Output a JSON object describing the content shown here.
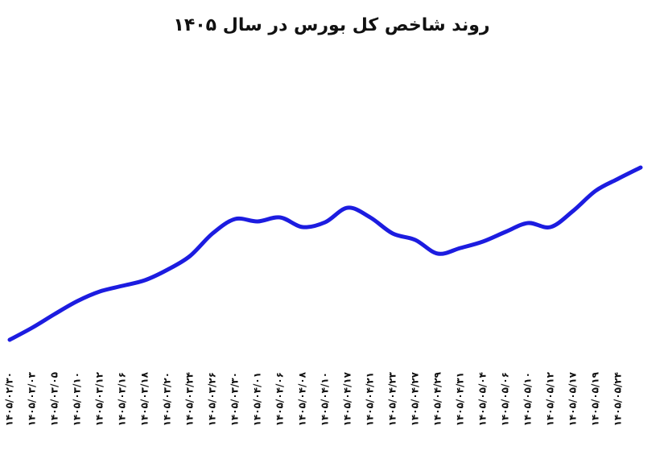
{
  "chart_data": {
    "type": "line",
    "title": "روند شاخص کل بورس در سال ۱۴۰۵",
    "categories": [
      "۱۴۰۵/۰۲/۳۰",
      "۱۴۰۵/۰۳/۰۳",
      "۱۴۰۵/۰۳/۰۵",
      "۱۴۰۵/۰۳/۱۰",
      "۱۴۰۵/۰۳/۱۲",
      "۱۴۰۵/۰۳/۱۶",
      "۱۴۰۵/۰۳/۱۸",
      "۱۴۰۵/۰۳/۲۰",
      "۱۴۰۵/۰۳/۲۴",
      "۱۴۰۵/۰۳/۲۶",
      "۱۴۰۵/۰۳/۳۰",
      "۱۴۰۵/۰۴/۰۱",
      "۱۴۰۵/۰۴/۰۶",
      "۱۴۰۵/۰۴/۰۸",
      "۱۴۰۵/۰۴/۱۰",
      "۱۴۰۵/۰۴/۱۷",
      "۱۴۰۵/۰۴/۲۱",
      "۱۴۰۵/۰۴/۲۳",
      "۱۴۰۵/۰۴/۲۷",
      "۱۴۰۵/۰۴/۲۹",
      "۱۴۰۵/۰۴/۳۱",
      "۱۴۰۵/۰۵/۰۴",
      "۱۴۰۵/۰۵/۰۶",
      "۱۴۰۵/۰۵/۱۰",
      "۱۴۰۵/۰۵/۱۲",
      "۱۴۰۵/۰۵/۱۷",
      "۱۴۰۵/۰۵/۱۹",
      "۱۴۰۵/۰۵/۲۴",
      null
    ],
    "values": [
      28,
      43,
      60,
      76,
      88,
      95,
      102,
      115,
      132,
      160,
      178,
      175,
      180,
      168,
      174,
      192,
      180,
      160,
      152,
      135,
      142,
      150,
      162,
      173,
      168,
      188,
      213,
      228,
      242
    ],
    "color": "#1c1ce0",
    "ylim": [
      0,
      390
    ]
  }
}
